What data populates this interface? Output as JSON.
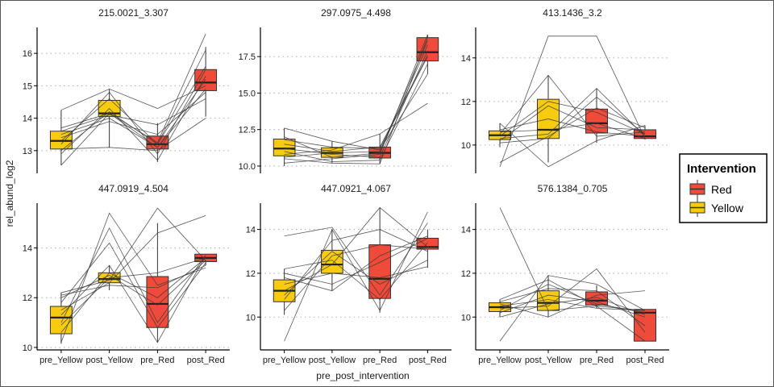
{
  "chart_data": {
    "type": "box",
    "xlabel": "pre_post_intervention",
    "ylabel": "rel_abund_log2",
    "categories": [
      "pre_Yellow",
      "post_Yellow",
      "pre_Red",
      "post_Red"
    ],
    "legend": {
      "title": "Intervention",
      "entries": [
        {
          "label": "Red",
          "color": "#F04A3A"
        },
        {
          "label": "Yellow",
          "color": "#F7CB0E"
        }
      ],
      "position": "right"
    },
    "grid": "horizontal dotted",
    "panels": [
      {
        "title": "215.0021_3.307",
        "ylim": [
          12.3,
          16.8
        ],
        "yticks": [
          13,
          14,
          15,
          16
        ],
        "boxes": [
          {
            "q1": 13.05,
            "median": 13.3,
            "q3": 13.6,
            "min": 12.55,
            "max": 14.25
          },
          {
            "q1": 14.05,
            "median": 14.15,
            "q3": 14.55,
            "min": 13.1,
            "max": 14.9
          },
          {
            "q1": 13.05,
            "median": 13.2,
            "q3": 13.45,
            "min": 12.65,
            "max": 13.85
          },
          {
            "q1": 14.85,
            "median": 15.1,
            "q3": 15.5,
            "min": 14.05,
            "max": 16.2
          }
        ],
        "lines": [
          [
            12.55,
            14.15,
            13.25,
            16.6
          ],
          [
            13.0,
            14.2,
            13.2,
            16.1
          ],
          [
            13.2,
            14.8,
            12.9,
            15.5
          ],
          [
            13.5,
            14.0,
            13.1,
            15.2
          ],
          [
            14.25,
            14.9,
            14.3,
            15.0
          ],
          [
            13.6,
            14.1,
            13.8,
            14.6
          ],
          [
            13.05,
            13.1,
            13.0,
            14.0
          ],
          [
            13.3,
            14.6,
            13.2,
            15.6
          ],
          [
            13.4,
            13.9,
            13.5,
            14.8
          ],
          [
            12.9,
            14.3,
            12.7,
            15.3
          ],
          [
            13.7,
            14.15,
            13.1,
            14.9
          ]
        ]
      },
      {
        "title": "297.0975_4.498",
        "ylim": [
          9.5,
          19.5
        ],
        "yticks": [
          10.0,
          12.5,
          15.0,
          17.5
        ],
        "boxes": [
          {
            "q1": 10.7,
            "median": 11.2,
            "q3": 11.85,
            "min": 10.0,
            "max": 12.6
          },
          {
            "q1": 10.6,
            "median": 10.9,
            "q3": 11.25,
            "min": 10.2,
            "max": 11.7
          },
          {
            "q1": 10.55,
            "median": 10.9,
            "q3": 11.3,
            "min": 10.15,
            "max": 12.2
          },
          {
            "q1": 17.2,
            "median": 17.8,
            "q3": 18.8,
            "min": 16.3,
            "max": 19.0
          }
        ],
        "lines": [
          [
            10.2,
            10.5,
            10.8,
            19.0
          ],
          [
            10.6,
            10.9,
            11.0,
            18.6
          ],
          [
            11.2,
            10.8,
            10.6,
            17.9
          ],
          [
            11.8,
            11.3,
            11.2,
            17.5
          ],
          [
            12.6,
            11.7,
            11.1,
            16.3
          ],
          [
            11.0,
            10.3,
            10.4,
            17.0
          ],
          [
            10.8,
            11.1,
            12.2,
            14.3
          ],
          [
            12.0,
            10.6,
            10.9,
            18.3
          ],
          [
            11.5,
            11.0,
            11.3,
            17.6
          ],
          [
            10.5,
            10.2,
            10.15,
            18.8
          ]
        ]
      },
      {
        "title": "413.1436_3.2",
        "ylim": [
          8.7,
          15.4
        ],
        "yticks": [
          10,
          12,
          14
        ],
        "boxes": [
          {
            "q1": 10.25,
            "median": 10.45,
            "q3": 10.65,
            "min": 9.9,
            "max": 11.0
          },
          {
            "q1": 10.3,
            "median": 10.7,
            "q3": 12.1,
            "min": 9.2,
            "max": 13.2
          },
          {
            "q1": 10.55,
            "median": 11.0,
            "q3": 11.65,
            "min": 10.1,
            "max": 12.6
          },
          {
            "q1": 10.3,
            "median": 10.4,
            "q3": 10.7,
            "min": 10.25,
            "max": 10.9
          }
        ],
        "lines": [
          [
            9.0,
            15.0,
            15.0,
            10.3
          ],
          [
            10.5,
            13.2,
            10.4,
            10.6
          ],
          [
            11.0,
            9.0,
            10.2,
            10.9
          ],
          [
            10.3,
            10.5,
            12.6,
            10.4
          ],
          [
            10.4,
            12.0,
            11.5,
            10.5
          ],
          [
            10.6,
            10.7,
            11.0,
            10.3
          ],
          [
            10.2,
            11.8,
            10.8,
            10.7
          ],
          [
            10.1,
            10.3,
            12.2,
            10.5
          ],
          [
            10.7,
            11.2,
            10.6,
            10.4
          ],
          [
            9.2,
            10.4,
            11.7,
            10.8
          ]
        ]
      },
      {
        "title": "447.0919_4.504",
        "ylim": [
          9.9,
          15.8
        ],
        "yticks": [
          10,
          12,
          14
        ],
        "boxes": [
          {
            "q1": 10.55,
            "median": 11.2,
            "q3": 11.65,
            "min": 10.15,
            "max": 12.2
          },
          {
            "q1": 12.6,
            "median": 12.75,
            "q3": 13.0,
            "min": 12.3,
            "max": 13.3
          },
          {
            "q1": 10.8,
            "median": 11.75,
            "q3": 12.85,
            "min": 10.2,
            "max": 15.0
          },
          {
            "q1": 13.45,
            "median": 13.6,
            "q3": 13.75,
            "min": 13.3,
            "max": 13.75
          }
        ],
        "lines": [
          [
            10.2,
            15.4,
            12.5,
            13.2
          ],
          [
            11.0,
            14.8,
            11.0,
            13.7
          ],
          [
            12.2,
            12.7,
            15.6,
            13.5
          ],
          [
            11.5,
            12.6,
            14.6,
            15.3
          ],
          [
            10.6,
            13.0,
            12.0,
            13.6
          ],
          [
            11.8,
            14.2,
            10.8,
            13.4
          ],
          [
            12.0,
            12.9,
            11.7,
            13.5
          ],
          [
            10.9,
            12.8,
            13.0,
            13.6
          ],
          [
            11.3,
            13.3,
            10.2,
            13.7
          ],
          [
            12.1,
            12.5,
            12.4,
            13.3
          ]
        ]
      },
      {
        "title": "447.0921_4.067",
        "ylim": [
          8.5,
          15.2
        ],
        "yticks": [
          10,
          12,
          14
        ],
        "boxes": [
          {
            "q1": 10.7,
            "median": 11.2,
            "q3": 11.7,
            "min": 10.1,
            "max": 12.2
          },
          {
            "q1": 12.0,
            "median": 12.4,
            "q3": 13.05,
            "min": 11.2,
            "max": 14.0
          },
          {
            "q1": 10.85,
            "median": 11.75,
            "q3": 13.3,
            "min": 10.2,
            "max": 15.0
          },
          {
            "q1": 13.1,
            "median": 13.2,
            "q3": 13.6,
            "min": 12.25,
            "max": 14.0
          }
        ],
        "lines": [
          [
            8.9,
            14.0,
            10.3,
            14.8
          ],
          [
            13.7,
            14.1,
            11.0,
            14.3
          ],
          [
            11.2,
            12.4,
            15.0,
            13.2
          ],
          [
            10.8,
            13.5,
            14.0,
            13.0
          ],
          [
            12.0,
            11.5,
            12.5,
            13.6
          ],
          [
            11.5,
            12.0,
            11.8,
            12.3
          ],
          [
            10.3,
            12.8,
            13.3,
            13.1
          ],
          [
            11.8,
            11.2,
            12.8,
            13.7
          ],
          [
            12.2,
            12.6,
            10.8,
            13.4
          ],
          [
            11.0,
            13.0,
            11.5,
            12.6
          ]
        ]
      },
      {
        "title": "576.1384_0.705",
        "ylim": [
          8.5,
          15.2
        ],
        "yticks": [
          10,
          12,
          14
        ],
        "boxes": [
          {
            "q1": 10.25,
            "median": 10.45,
            "q3": 10.65,
            "min": 10.0,
            "max": 10.8
          },
          {
            "q1": 10.3,
            "median": 10.65,
            "q3": 11.2,
            "min": 10.0,
            "max": 11.9
          },
          {
            "q1": 10.55,
            "median": 10.75,
            "q3": 11.15,
            "min": 10.4,
            "max": 11.45
          },
          {
            "q1": 8.9,
            "median": 10.2,
            "q3": 10.35,
            "min": 8.9,
            "max": 10.35
          }
        ],
        "lines": [
          [
            15.0,
            10.3,
            10.5,
            8.9
          ],
          [
            8.9,
            11.9,
            11.5,
            10.3
          ],
          [
            10.4,
            10.5,
            12.2,
            9.3
          ],
          [
            10.3,
            11.5,
            10.6,
            10.2
          ],
          [
            10.6,
            10.0,
            11.0,
            11.2
          ],
          [
            10.2,
            11.0,
            10.7,
            10.0
          ],
          [
            10.5,
            10.8,
            10.4,
            10.3
          ],
          [
            10.7,
            11.3,
            11.2,
            9.6
          ],
          [
            10.0,
            10.6,
            10.9,
            10.1
          ],
          [
            10.8,
            11.7,
            10.5,
            10.3
          ]
        ]
      }
    ]
  }
}
